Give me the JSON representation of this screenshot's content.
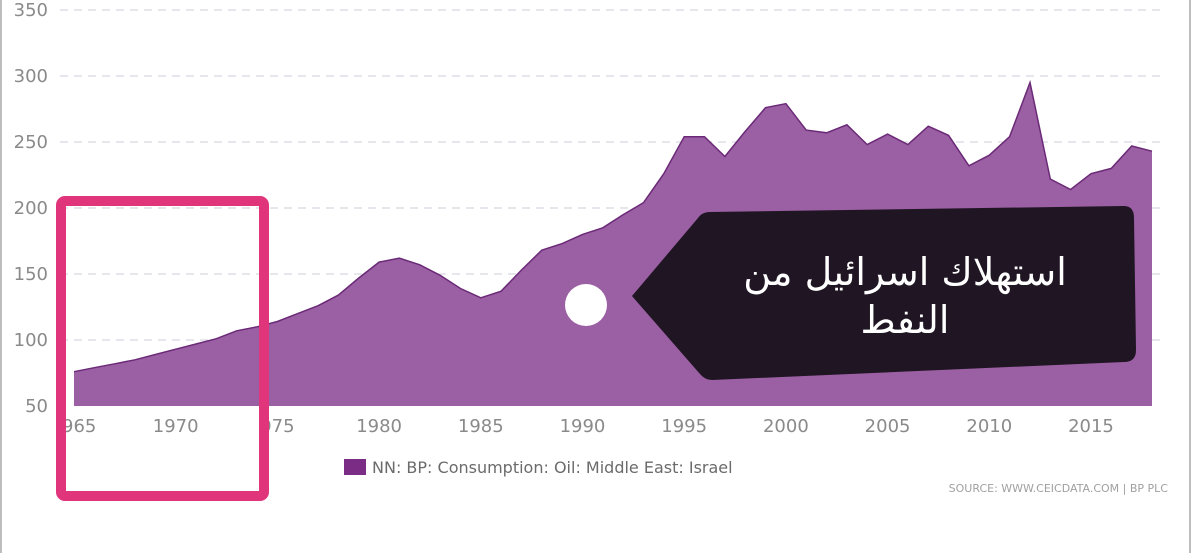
{
  "chart_data": {
    "type": "area",
    "x": [
      1965,
      1966,
      1967,
      1968,
      1969,
      1970,
      1971,
      1972,
      1973,
      1974,
      1975,
      1976,
      1977,
      1978,
      1979,
      1980,
      1981,
      1982,
      1983,
      1984,
      1985,
      1986,
      1987,
      1988,
      1989,
      1990,
      1991,
      1992,
      1993,
      1994,
      1995,
      1996,
      1997,
      1998,
      1999,
      2000,
      2001,
      2002,
      2003,
      2004,
      2005,
      2006,
      2007,
      2008,
      2009,
      2010,
      2011,
      2012,
      2013,
      2014,
      2015,
      2016,
      2017,
      2018
    ],
    "series": [
      {
        "name": "NN: BP: Consumption: Oil: Middle East: Israel",
        "values": [
          76,
          79,
          82,
          85,
          89,
          93,
          97,
          101,
          107,
          110,
          114,
          120,
          126,
          134,
          147,
          159,
          162,
          157,
          149,
          139,
          132,
          137,
          153,
          168,
          173,
          180,
          185,
          195,
          204,
          226,
          254,
          254,
          239,
          258,
          276,
          279,
          259,
          257,
          263,
          248,
          256,
          248,
          262,
          255,
          232,
          240,
          254,
          295,
          222,
          214,
          226,
          230,
          247,
          243
        ]
      }
    ],
    "ylim": [
      50,
      350
    ],
    "xlim": [
      1965,
      2018
    ],
    "y_ticks": [
      50,
      100,
      150,
      200,
      250,
      300,
      350
    ],
    "x_tick_labels": [
      "965",
      "1970",
      "975",
      "1980",
      "1985",
      "1990",
      "1995",
      "2000",
      "2005",
      "2010",
      "2015"
    ],
    "grid": true,
    "legend_position": "bottom-center",
    "source": "SOURCE: WWW.CEICDATA.COM | BP PLC",
    "annotation": {
      "line1": "استهلاك اسرائيل من",
      "line2": "النفط"
    },
    "colors": {
      "area": "#9b5fa3",
      "line": "#6b2a77",
      "legend": "#7b2d86",
      "highlight": "#e0357a",
      "callout": "#1f1523",
      "grid": "#d8d8e0",
      "axis": "#bdbdbd"
    }
  }
}
